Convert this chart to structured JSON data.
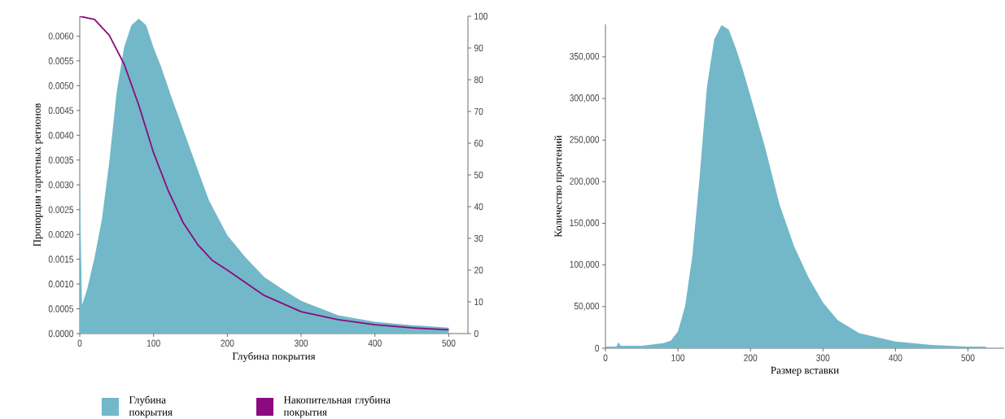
{
  "chart_data": [
    {
      "type": "area",
      "xlabel": "Глубина покрытия",
      "ylabel": "Пропорции таргетных регионов",
      "legend": "bottom",
      "xlim": [
        0,
        526
      ],
      "xticks": [
        0,
        100,
        200,
        300,
        400,
        500
      ],
      "ylim": [
        0,
        0.0064
      ],
      "yticks": [
        {
          "value": 0,
          "label": "0.0000"
        },
        {
          "value": 0.0005,
          "label": "0.0005"
        },
        {
          "value": 0.001,
          "label": "0.0010"
        },
        {
          "value": 0.0015,
          "label": "0.0015"
        },
        {
          "value": 0.002,
          "label": "0.0020"
        },
        {
          "value": 0.0025,
          "label": "0.0025"
        },
        {
          "value": 0.003,
          "label": "0.0030"
        },
        {
          "value": 0.0035,
          "label": "0.0035"
        },
        {
          "value": 0.004,
          "label": "0.0040"
        },
        {
          "value": 0.0045,
          "label": "0.0045"
        },
        {
          "value": 0.005,
          "label": "0.0050"
        },
        {
          "value": 0.0055,
          "label": "0.0055"
        },
        {
          "value": 0.006,
          "label": "0.0060"
        }
      ],
      "y2lim": [
        0,
        100
      ],
      "y2ticks": [
        0,
        10,
        20,
        30,
        40,
        50,
        60,
        70,
        80,
        90,
        100
      ],
      "series": [
        {
          "name": "Глубина покрытия",
          "color": "#72b8c8",
          "x": [
            0,
            3,
            10,
            20,
            30,
            40,
            50,
            60,
            70,
            80,
            90,
            100,
            110,
            125,
            150,
            175,
            200,
            225,
            250,
            275,
            300,
            350,
            400,
            450,
            500
          ],
          "values": [
            0.00315,
            0.00057,
            0.00089,
            0.00153,
            0.0023,
            0.00346,
            0.00487,
            0.00577,
            0.00622,
            0.00635,
            0.00622,
            0.00577,
            0.00539,
            0.00474,
            0.00371,
            0.00269,
            0.00198,
            0.00153,
            0.00114,
            0.00089,
            0.00066,
            0.00037,
            0.00024,
            0.00017,
            0.00012
          ]
        },
        {
          "name": "Накопительная глубина покрытия",
          "type": "line",
          "axis": "y2",
          "color": "#8b0a80",
          "x": [
            0,
            20,
            40,
            60,
            80,
            100,
            120,
            140,
            160,
            180,
            200,
            250,
            300,
            350,
            400,
            450,
            500
          ],
          "values": [
            100,
            99,
            94,
            85,
            72,
            57,
            45,
            35,
            28,
            23,
            20,
            12,
            6.9,
            4.4,
            2.8,
            1.8,
            1.2
          ]
        }
      ]
    },
    {
      "type": "area",
      "xlabel": "Размер вставки",
      "ylabel": "Количество прочтений",
      "xlim": [
        0,
        550
      ],
      "xticks": [
        0,
        100,
        200,
        300,
        400,
        500
      ],
      "ylim": [
        0,
        389000
      ],
      "yticks": [
        {
          "value": 0,
          "label": "0"
        },
        {
          "value": 50000,
          "label": "50,000"
        },
        {
          "value": 100000,
          "label": "100,000"
        },
        {
          "value": 150000,
          "label": "150,000"
        },
        {
          "value": 200000,
          "label": "200,000"
        },
        {
          "value": 250000,
          "label": "250,000"
        },
        {
          "value": 300000,
          "label": "300,000"
        },
        {
          "value": 350000,
          "label": "350,000"
        }
      ],
      "series": [
        {
          "color": "#72b8c8",
          "x": [
            0,
            15,
            18,
            21,
            50,
            80,
            90,
            100,
            110,
            120,
            130,
            140,
            150,
            160,
            170,
            180,
            190,
            200,
            220,
            240,
            260,
            280,
            300,
            320,
            350,
            400,
            450,
            500,
            525
          ],
          "values": [
            2000,
            2000,
            7000,
            3000,
            3000,
            6000,
            9000,
            20000,
            51000,
            112000,
            207000,
            314000,
            371000,
            388000,
            383000,
            360000,
            333000,
            303000,
            242000,
            173000,
            123000,
            85000,
            55000,
            34000,
            18000,
            8000,
            4000,
            2000,
            2000
          ]
        }
      ]
    }
  ]
}
